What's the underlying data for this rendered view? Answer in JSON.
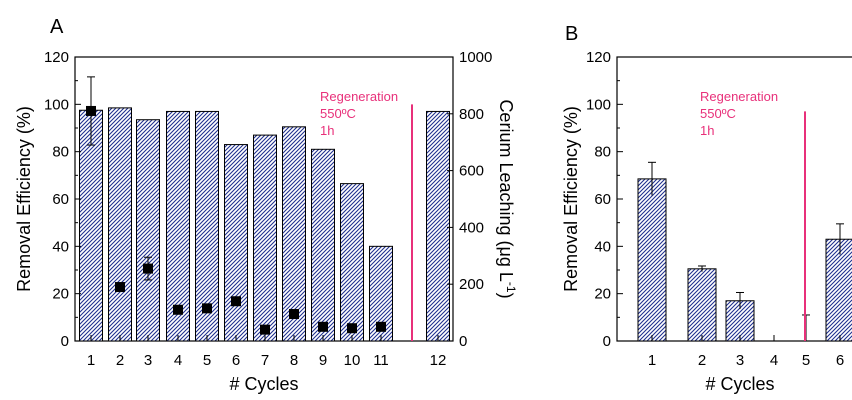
{
  "colors": {
    "bar_hatch": "#1f2f8f",
    "regeneration_line": "#e8307a",
    "marker": "#000000"
  },
  "chart_data": [
    {
      "panel": "A",
      "type": "bar",
      "xlabel": "# Cycles",
      "ylabel": "Removal Efficiency (%)",
      "ylabel_right": "Cerium Leaching (μg L",
      "ylabel_right_sup": "-1",
      "ylabel_right_close": ")",
      "ylim": [
        0,
        120
      ],
      "yticks": [
        0,
        20,
        40,
        60,
        80,
        100,
        120
      ],
      "ylim_right": [
        0,
        1000
      ],
      "yticks_right": [
        0,
        200,
        400,
        600,
        800,
        1000
      ],
      "categories": [
        "1",
        "2",
        "3",
        "4",
        "5",
        "6",
        "7",
        "8",
        "9",
        "10",
        "11",
        "12"
      ],
      "series": [
        {
          "values": [
            97.5,
            98.5,
            93.5,
            97,
            97,
            83,
            87,
            90.5,
            81,
            66.5,
            40,
            97
          ]
        },
        {
          "type": "scatter",
          "axis": "right",
          "values": [
            810,
            190,
            255,
            110,
            115,
            140,
            40,
            95,
            50,
            45,
            50,
            null
          ],
          "errors": [
            120,
            null,
            40,
            null,
            null,
            null,
            null,
            null,
            null,
            null,
            null,
            null
          ]
        }
      ],
      "annotation": [
        "Regeneration",
        "550ºC",
        "1h"
      ]
    },
    {
      "panel": "B",
      "type": "bar",
      "xlabel": "# Cycles",
      "ylabel": "Removal Efficiency (%)",
      "ylim": [
        0,
        120
      ],
      "yticks": [
        0,
        20,
        40,
        60,
        80,
        100,
        120
      ],
      "categories": [
        "1",
        "2",
        "3",
        "4",
        "5",
        "6"
      ],
      "series": [
        {
          "values": [
            68.5,
            30.5,
            17,
            0,
            0,
            43
          ],
          "errors": [
            7,
            1.2,
            3.5,
            0,
            11,
            6.5
          ]
        }
      ],
      "annotation": [
        "Regeneration",
        "550ºC",
        "1h"
      ]
    }
  ]
}
